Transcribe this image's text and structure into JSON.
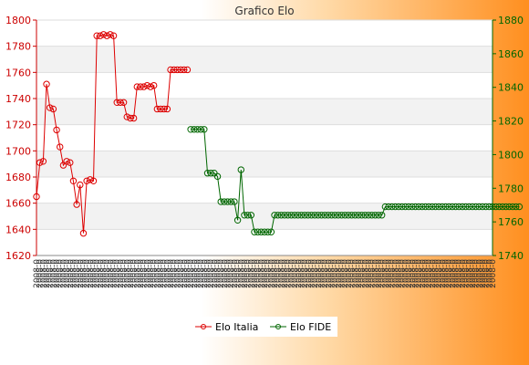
{
  "chart_data": {
    "type": "line",
    "title": "Grafico Elo",
    "x_tick_label": "2008-0",
    "n_points": 137,
    "y_left_range": [
      1620,
      1800
    ],
    "y_left_ticks": [
      1620,
      1640,
      1660,
      1680,
      1700,
      1720,
      1740,
      1760,
      1780,
      1800
    ],
    "y_right_range": [
      1740,
      1880
    ],
    "y_right_ticks": [
      1740,
      1760,
      1780,
      1800,
      1820,
      1840,
      1860,
      1880
    ],
    "grid": true,
    "legend_position": "bottom",
    "series": [
      {
        "name": "Elo Italia",
        "axis": "left",
        "color": "#dd0000",
        "values": [
          1665,
          1691,
          1692,
          1751,
          1733,
          1732,
          1716,
          1703,
          1689,
          1692,
          1691,
          1677,
          1659,
          1674,
          1637,
          1677,
          1678,
          1677,
          1788,
          1788,
          1789,
          1788,
          1789,
          1788,
          1737,
          1737,
          1737,
          1726,
          1725,
          1725,
          1749,
          1749,
          1749,
          1750,
          1749,
          1750,
          1732,
          1732,
          1732,
          1732,
          1762,
          1762,
          1762,
          1762,
          1762,
          1762
        ]
      },
      {
        "name": "Elo FIDE",
        "axis": "right",
        "color": "#006600",
        "values": [
          null,
          null,
          null,
          null,
          null,
          null,
          null,
          null,
          null,
          null,
          null,
          null,
          null,
          null,
          null,
          null,
          null,
          null,
          null,
          null,
          null,
          null,
          null,
          null,
          null,
          null,
          null,
          null,
          null,
          null,
          null,
          null,
          null,
          null,
          null,
          null,
          null,
          null,
          null,
          null,
          null,
          null,
          null,
          null,
          null,
          null,
          1815,
          1815,
          1815,
          1815,
          1815,
          1789,
          1789,
          1789,
          1787,
          1772,
          1772,
          1772,
          1772,
          1772,
          1761,
          1791,
          1764,
          1764,
          1764,
          1754,
          1754,
          1754,
          1754,
          1754,
          1754,
          1764,
          1764,
          1764,
          1764,
          1764,
          1764,
          1764,
          1764,
          1764,
          1764,
          1764,
          1764,
          1764,
          1764,
          1764,
          1764,
          1764,
          1764,
          1764,
          1764,
          1764,
          1764,
          1764,
          1764,
          1764,
          1764,
          1764,
          1764,
          1764,
          1764,
          1764,
          1764,
          1764,
          1769,
          1769,
          1769,
          1769,
          1769,
          1769,
          1769,
          1769,
          1769,
          1769,
          1769,
          1769,
          1769,
          1769,
          1769,
          1769,
          1769,
          1769,
          1769,
          1769,
          1769,
          1769,
          1769,
          1769,
          1769,
          1769,
          1769,
          1769,
          1769,
          1769,
          1769,
          1769,
          1769,
          1769,
          1769,
          1769,
          1769,
          1769,
          1769,
          1769,
          1769
        ]
      }
    ]
  }
}
